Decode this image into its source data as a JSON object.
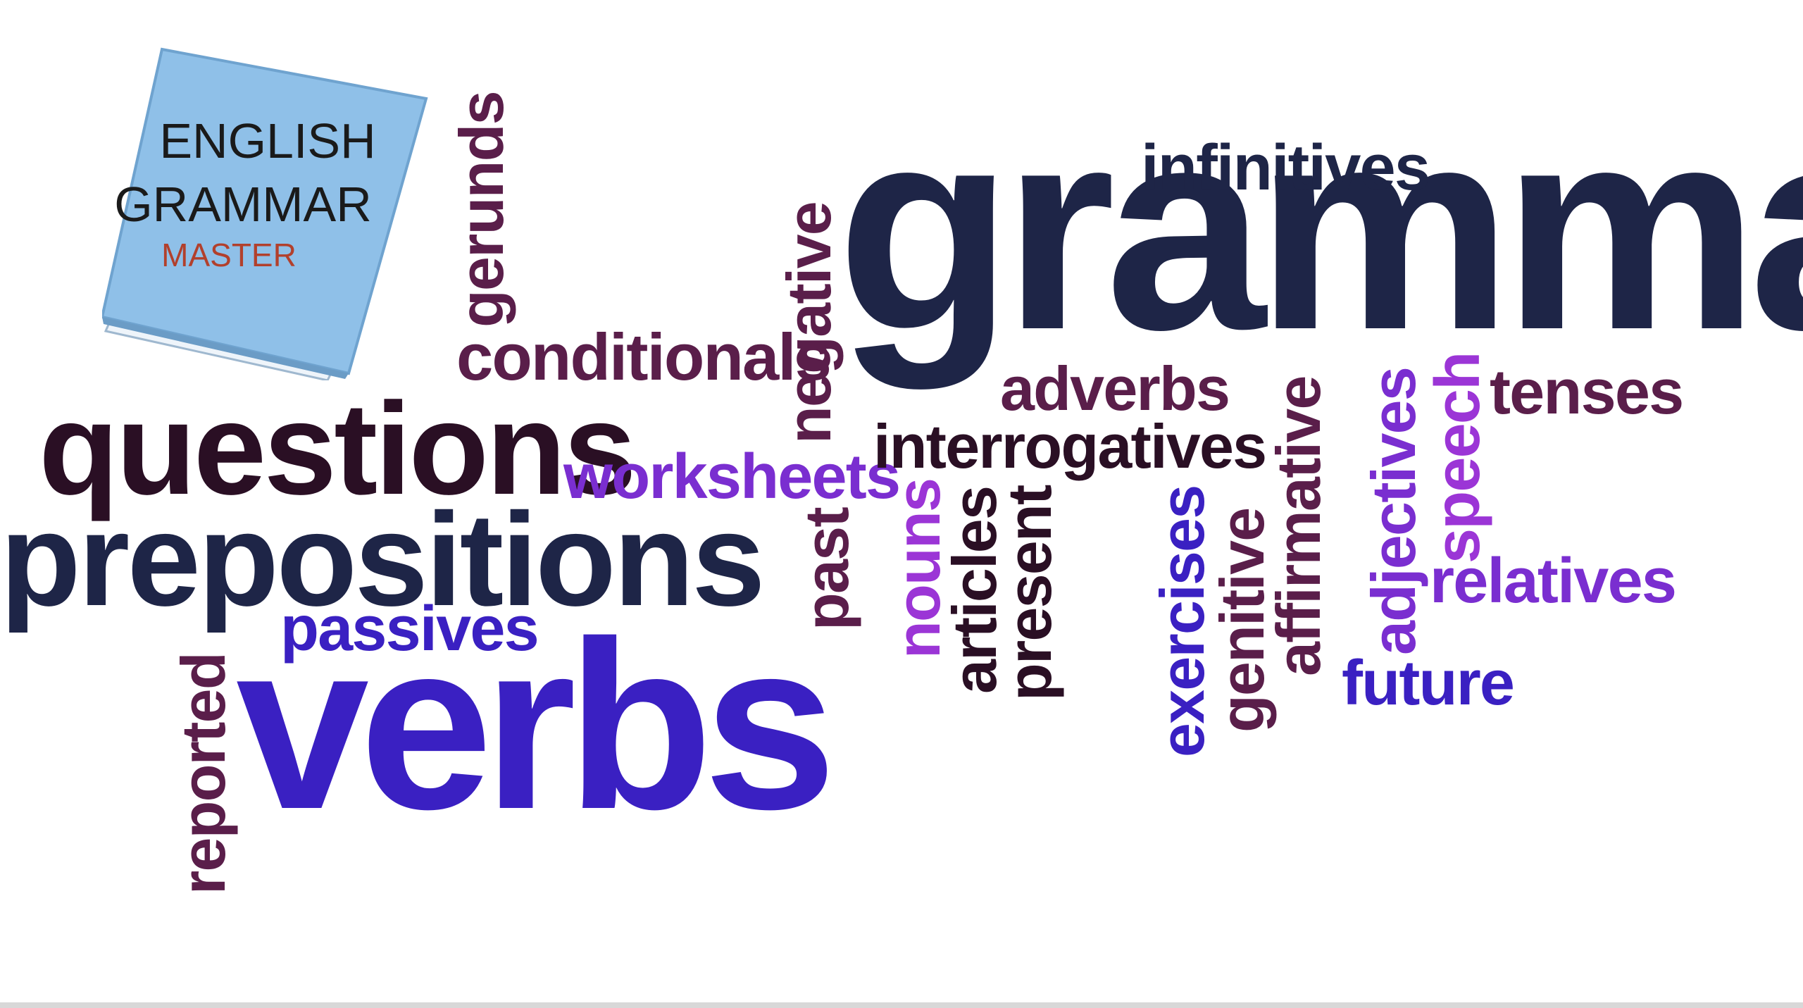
{
  "logo": {
    "line1": "ENGLISH",
    "line2": "GRAMMAR",
    "line3": "MASTER",
    "book_color": "#8fc0e8",
    "accent_color": "#b2402c"
  },
  "words": {
    "grammar": "grammar",
    "infinitives": "infinitives",
    "negative": "negative",
    "gerunds": "gerunds",
    "conditionals": "conditionals",
    "questions": "questions",
    "prepositions": "prepositions",
    "worksheets": "worksheets",
    "passives": "passives",
    "verbs": "verbs",
    "reported": "reported",
    "adverbs": "adverbs",
    "interrogatives": "interrogatives",
    "past": "past",
    "nouns": "nouns",
    "articles": "articles",
    "present": "present",
    "exercises": "exercises",
    "genitive": "genitive",
    "affirmative": "affirmative",
    "adjectives": "adjectives",
    "speech": "speech",
    "tenses": "tenses",
    "relatives": "relatives",
    "future": "future"
  },
  "colors": {
    "navy": "#1e2547",
    "plum": "#5a1e4a",
    "dark": "#2a0f24",
    "indigo": "#3a20c2",
    "violet": "#7a2ed0",
    "purple": "#9b35d6"
  }
}
